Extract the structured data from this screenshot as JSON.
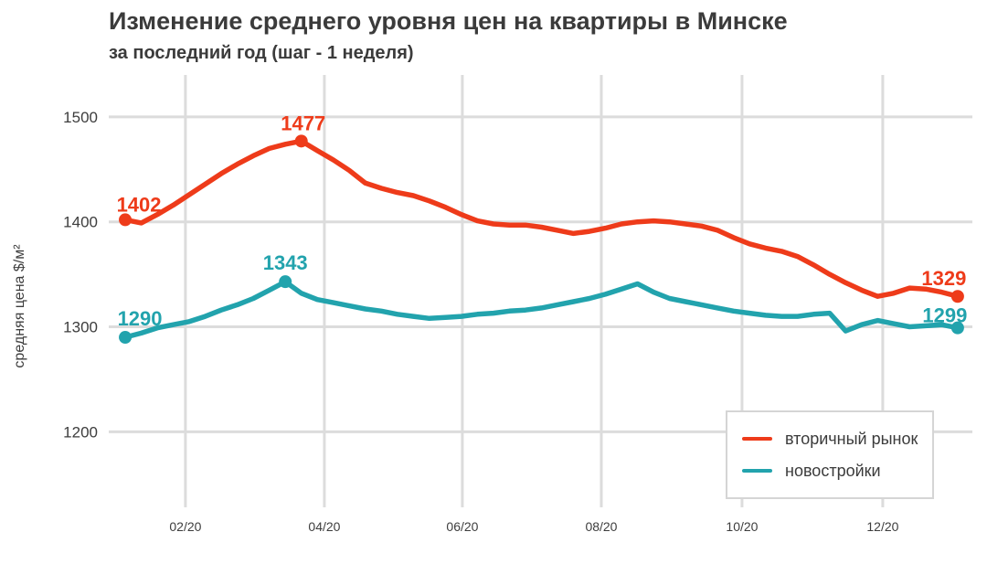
{
  "chart_data": {
    "type": "line",
    "title": "Изменение среднего уровня цен на квартиры в Минске",
    "subtitle": "за последний год (шаг - 1 неделя)",
    "xlabel": "",
    "ylabel": "средняя цена $/м²",
    "x_unit": "week",
    "x_step_weeks": 1,
    "grid": true,
    "legend_position": "lower right",
    "ylim": [
      1128,
      1540
    ],
    "xlim_weeks": [
      -1.03,
      52.92
    ],
    "yticks": [
      1200,
      1300,
      1400,
      1500
    ],
    "xticks": [
      {
        "label": "02/20",
        "week": 3.76
      },
      {
        "label": "04/20",
        "week": 12.44
      },
      {
        "label": "06/20",
        "week": 21.06
      },
      {
        "label": "08/20",
        "week": 29.74
      },
      {
        "label": "10/20",
        "week": 38.53
      },
      {
        "label": "12/20",
        "week": 47.32
      }
    ],
    "series": [
      {
        "name": "вторичный рынок",
        "key": "secondary-market",
        "color": "#ee3b1a",
        "values": [
          1402,
          1399,
          1407,
          1416,
          1426,
          1436,
          1446,
          1455,
          1463,
          1470,
          1474,
          1477,
          1468,
          1459,
          1449,
          1437,
          1432,
          1428,
          1425,
          1420,
          1414,
          1407,
          1401,
          1398,
          1397,
          1397,
          1395,
          1392,
          1389,
          1391,
          1394,
          1398,
          1400,
          1401,
          1400,
          1398,
          1396,
          1392,
          1385,
          1379,
          1375,
          1372,
          1367,
          1359,
          1350,
          1342,
          1335,
          1329,
          1332,
          1337,
          1336,
          1333,
          1329
        ],
        "markers": [
          0,
          11,
          52
        ],
        "annotations": [
          {
            "point": 0,
            "label": "1402",
            "dx": 15,
            "dy": -9
          },
          {
            "point": 11,
            "label": "1477",
            "dx": 2,
            "dy": -12
          },
          {
            "point": 52,
            "label": "1329",
            "dx": -15,
            "dy": -12
          }
        ]
      },
      {
        "name": "новостройки",
        "key": "new-buildings",
        "color": "#22a3ad",
        "values": [
          1290,
          1294,
          1299,
          1302,
          1305,
          1310,
          1316,
          1321,
          1327,
          1335,
          1343,
          1332,
          1326,
          1323,
          1320,
          1317,
          1315,
          1312,
          1310,
          1308,
          1309,
          1310,
          1312,
          1313,
          1315,
          1316,
          1318,
          1321,
          1324,
          1327,
          1331,
          1336,
          1341,
          1333,
          1327,
          1324,
          1321,
          1318,
          1315,
          1313,
          1311,
          1310,
          1310,
          1312,
          1313,
          1296,
          1302,
          1306,
          1303,
          1300,
          1301,
          1302,
          1299
        ],
        "markers": [
          0,
          10,
          52
        ],
        "annotations": [
          {
            "point": 0,
            "label": "1290",
            "dx": 16,
            "dy": -13
          },
          {
            "point": 10,
            "label": "1343",
            "dx": 0,
            "dy": -13
          },
          {
            "point": 52,
            "label": "1299",
            "dx": -14,
            "dy": -6
          }
        ]
      }
    ]
  },
  "colors": {
    "grid": "#dcdcdc",
    "tick_text": "#3d3d3d",
    "title_text": "#3b3b3b"
  }
}
